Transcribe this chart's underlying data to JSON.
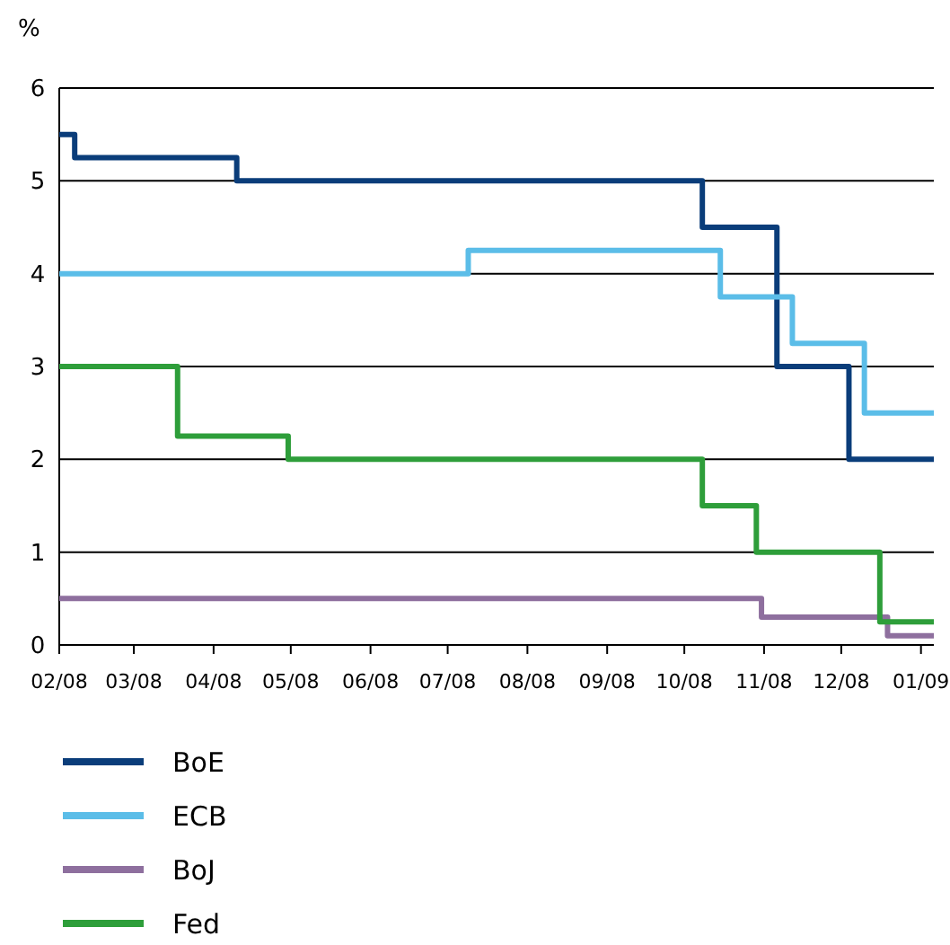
{
  "chart_data": {
    "type": "step",
    "ylabel": "%",
    "ylim": [
      0,
      6
    ],
    "yticks": [
      0,
      1,
      2,
      3,
      4,
      5,
      6
    ],
    "xlim": [
      "2008-02-01",
      "2009-01-06"
    ],
    "xticks": [
      {
        "value": "2008-02-01",
        "label": "02/08"
      },
      {
        "value": "2008-03-01",
        "label": "03/08"
      },
      {
        "value": "2008-04-01",
        "label": "04/08"
      },
      {
        "value": "2008-05-01",
        "label": "05/08"
      },
      {
        "value": "2008-06-01",
        "label": "06/08"
      },
      {
        "value": "2008-07-01",
        "label": "07/08"
      },
      {
        "value": "2008-08-01",
        "label": "08/08"
      },
      {
        "value": "2008-09-01",
        "label": "09/08"
      },
      {
        "value": "2008-10-01",
        "label": "10/08"
      },
      {
        "value": "2008-11-01",
        "label": "11/08"
      },
      {
        "value": "2008-12-01",
        "label": "12/08"
      },
      {
        "value": "2009-01-01",
        "label": "01/09"
      }
    ],
    "grid": "y",
    "legend": "bottom",
    "line_style": "solid",
    "marker": "none",
    "series": [
      {
        "name": "BoE",
        "color": "#0a3d7a",
        "x": [
          "2008-02-01",
          "2008-02-07",
          "2008-04-10",
          "2008-10-08",
          "2008-11-06",
          "2008-12-04",
          "2009-01-06"
        ],
        "values": [
          5.5,
          5.25,
          5.0,
          4.5,
          3.0,
          2.0,
          2.0
        ]
      },
      {
        "name": "ECB",
        "color": "#5bbde8",
        "x": [
          "2008-02-01",
          "2008-07-09",
          "2008-10-15",
          "2008-11-12",
          "2008-12-10",
          "2009-01-06"
        ],
        "values": [
          4.0,
          4.25,
          3.75,
          3.25,
          2.5,
          2.5
        ]
      },
      {
        "name": "BoJ",
        "color": "#8e6f9e",
        "x": [
          "2008-02-01",
          "2008-10-31",
          "2008-12-19",
          "2009-01-06"
        ],
        "values": [
          0.5,
          0.3,
          0.1,
          0.1
        ]
      },
      {
        "name": "Fed",
        "color": "#2e9e3a",
        "x": [
          "2008-02-01",
          "2008-03-18",
          "2008-04-30",
          "2008-10-08",
          "2008-10-29",
          "2008-12-16",
          "2009-01-06"
        ],
        "values": [
          3.0,
          2.25,
          2.0,
          1.5,
          1.0,
          0.25,
          0.25
        ]
      }
    ]
  }
}
